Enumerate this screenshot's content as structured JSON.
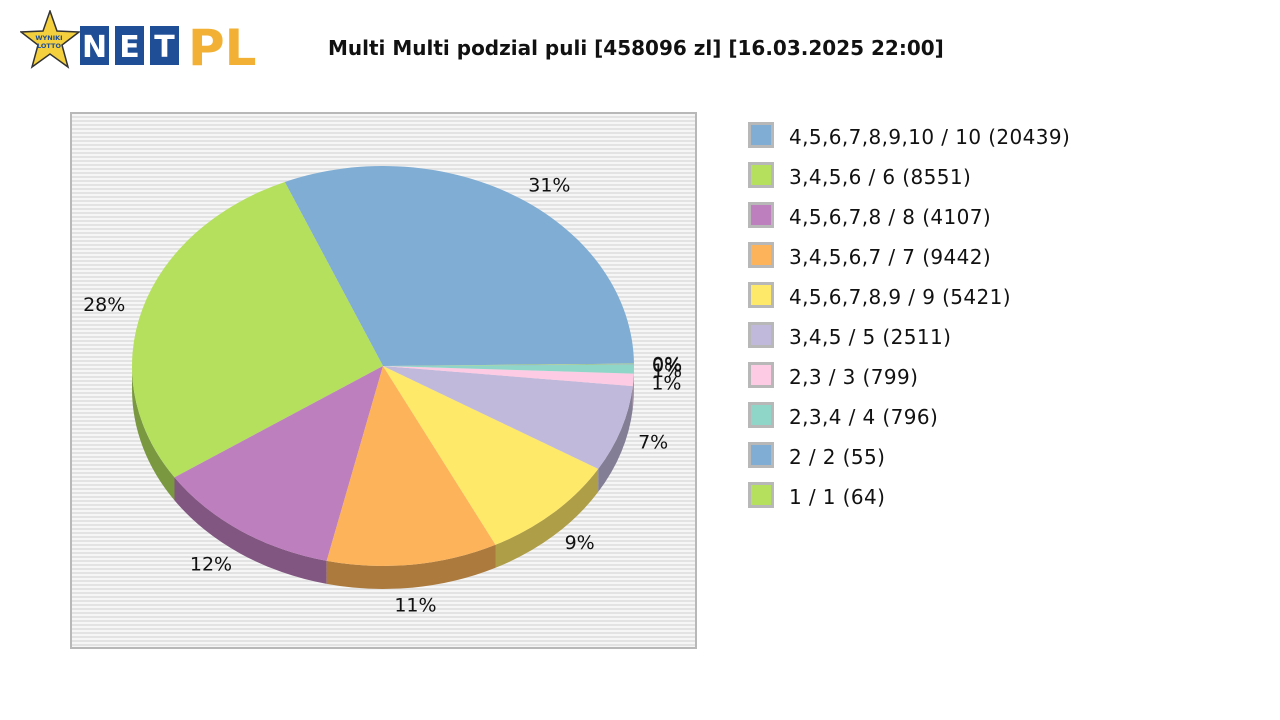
{
  "header": {
    "logo": {
      "badge_text": [
        "WYNIKI",
        "LOTTO"
      ],
      "net_letters": [
        "N",
        "E",
        "T"
      ],
      "pl_text": "PL",
      "colors": {
        "star": "#f4d03f",
        "blue": "#1f4e96",
        "orange": "#f2b134"
      }
    }
  },
  "chart_data": {
    "type": "pie",
    "title": "Multi Multi podzial puli [458096 zl] [16.03.2025 22:00]",
    "total": 458096,
    "slices": [
      {
        "label": "2 / 2 (55)",
        "value": 142955,
        "pct_label": "31%",
        "color": "#7fadd4"
      },
      {
        "label": "1 / 1 (64)",
        "value": 128267,
        "pct_label": "28%",
        "color": "#b4e05e"
      },
      {
        "label": "4,5,6,7,8 / 8 (4107)",
        "value": 54972,
        "pct_label": "12%",
        "color": "#bd7fbd"
      },
      {
        "label": "3,4,5,6,7 / 7 (9442)",
        "value": 50390,
        "pct_label": "11%",
        "color": "#fdb35a"
      },
      {
        "label": "4,5,6,7,8,9 / 9 (5421)",
        "value": 41229,
        "pct_label": "9%",
        "color": "#ffe968"
      },
      {
        "label": "3,4,5 / 5 (2511)",
        "value": 32067,
        "pct_label": "7%",
        "color": "#c0b9db"
      },
      {
        "label": "2,3 / 3 (799)",
        "value": 4581,
        "pct_label": "1%",
        "color": "#fdcbe3"
      },
      {
        "label": "2,3,4 / 4 (796)",
        "value": 3207,
        "pct_label": "1%",
        "color": "#8fd6c9"
      },
      {
        "label": "4,5,6,7,8,9,10 / 10 (20439)",
        "value": 229,
        "pct_label": "0%",
        "color": "#7fadd4"
      },
      {
        "label": "3,4,5,6 / 6 (8551)",
        "value": 199,
        "pct_label": "0%",
        "color": "#b4e05e"
      }
    ],
    "legend": {
      "placement": "right",
      "items": [
        {
          "label": "4,5,6,7,8,9,10 / 10 (20439)",
          "color": "#7fadd4"
        },
        {
          "label": "3,4,5,6 / 6 (8551)",
          "color": "#b4e05e"
        },
        {
          "label": "4,5,6,7,8 / 8 (4107)",
          "color": "#bd7fbd"
        },
        {
          "label": "3,4,5,6,7 / 7 (9442)",
          "color": "#fdb35a"
        },
        {
          "label": "4,5,6,7,8,9 / 9 (5421)",
          "color": "#ffe968"
        },
        {
          "label": "3,4,5 / 5 (2511)",
          "color": "#c0b9db"
        },
        {
          "label": "2,3 / 3 (799)",
          "color": "#fdcbe3"
        },
        {
          "label": "2,3,4 / 4 (796)",
          "color": "#8fd6c9"
        },
        {
          "label": "2 / 2 (55)",
          "color": "#7fadd4"
        },
        {
          "label": "1 / 1 (64)",
          "color": "#b4e05e"
        }
      ]
    },
    "style": {
      "three_d": true,
      "background": "striped-gray",
      "label_color": "#111111"
    }
  }
}
